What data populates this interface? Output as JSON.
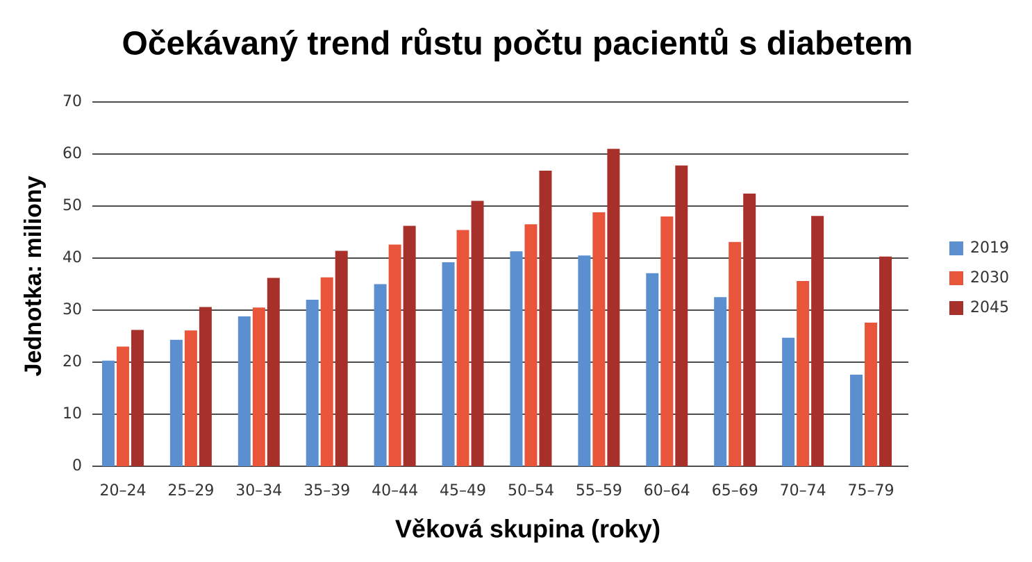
{
  "chart_data": {
    "type": "bar",
    "title": "Očekávaný trend růstu počtu pacientů s diabetem",
    "x_label": "Věková skupina (roky)",
    "y_label": "Jednotka: miliony",
    "categories": [
      "20–24",
      "25–29",
      "30–34",
      "35–39",
      "40–44",
      "45–49",
      "50–54",
      "55–59",
      "60–64",
      "65–69",
      "70–74",
      "75–79"
    ],
    "series": [
      {
        "name": "2019",
        "color": "#5b8fd0",
        "values": [
          20.3,
          24.3,
          28.8,
          32,
          35,
          39.2,
          41.3,
          40.5,
          37.1,
          32.5,
          24.7,
          17.6
        ]
      },
      {
        "name": "2030",
        "color": "#e8553a",
        "values": [
          23,
          26.1,
          30.5,
          36.3,
          42.6,
          45.4,
          46.5,
          48.8,
          48,
          43.1,
          35.6,
          27.6
        ]
      },
      {
        "name": "2045",
        "color": "#a8302a",
        "values": [
          26.2,
          30.6,
          36.2,
          41.4,
          46.2,
          51,
          56.8,
          61,
          57.8,
          52.4,
          48.1,
          40.3
        ]
      }
    ],
    "ylim": [
      0,
      70
    ],
    "yticks": [
      0,
      10,
      20,
      30,
      40,
      50,
      60,
      70
    ],
    "grid": true,
    "legend": "right"
  }
}
